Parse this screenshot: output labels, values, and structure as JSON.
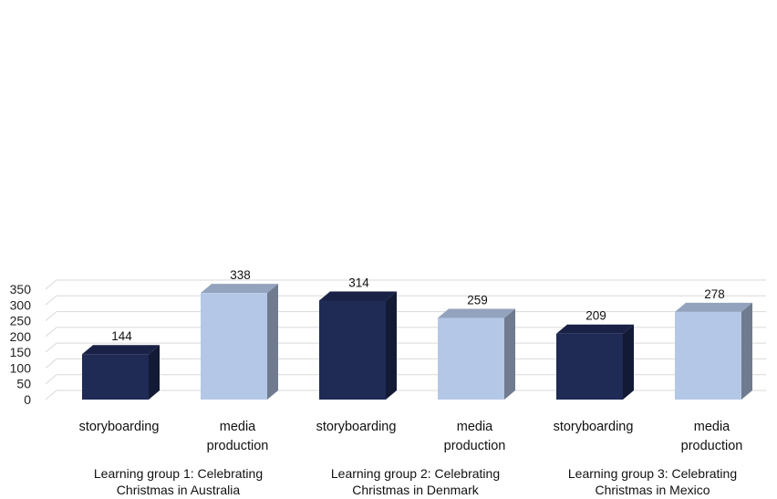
{
  "chart_data": {
    "type": "bar",
    "style": "3d-column",
    "ylim": [
      0,
      350
    ],
    "y_ticks": [
      "0",
      "50",
      "100",
      "150",
      "200",
      "250",
      "300",
      "350"
    ],
    "grid": true,
    "legend": "none",
    "groups": [
      {
        "label_lines": [
          "Learning group 1: Celebrating",
          "Christmas in Australia"
        ],
        "bars": [
          {
            "category_lines": [
              "storyboarding"
            ],
            "value": 144,
            "label": "144",
            "color": "#1f2a55"
          },
          {
            "category_lines": [
              "media",
              "production"
            ],
            "value": 338,
            "label": "338",
            "color": "#b4c7e7"
          }
        ]
      },
      {
        "label_lines": [
          "Learning group 2: Celebrating",
          "Christmas in Denmark"
        ],
        "bars": [
          {
            "category_lines": [
              "storyboarding"
            ],
            "value": 314,
            "label": "314",
            "color": "#1f2a55"
          },
          {
            "category_lines": [
              "media",
              "production"
            ],
            "value": 259,
            "label": "259",
            "color": "#b4c7e7"
          }
        ]
      },
      {
        "label_lines": [
          "Learning group 3: Celebrating",
          "Christmas in Mexico"
        ],
        "bars": [
          {
            "category_lines": [
              "storyboarding"
            ],
            "value": 209,
            "label": "209",
            "color": "#1f2a55"
          },
          {
            "category_lines": [
              "media",
              "production"
            ],
            "value": 278,
            "label": "278",
            "color": "#b4c7e7"
          }
        ]
      }
    ]
  }
}
